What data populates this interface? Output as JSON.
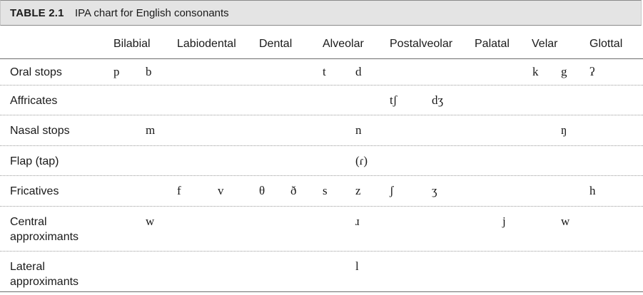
{
  "table": {
    "number": "TABLE 2.1",
    "title": "IPA chart for English consonants",
    "columns": [
      "Bilabial",
      "Labiodental",
      "Dental",
      "Alveolar",
      "Postalveolar",
      "Palatal",
      "Velar",
      "Glottal"
    ],
    "rows": [
      {
        "label": "Oral stops",
        "symbols": {
          "Bilabial": [
            "p",
            "b"
          ],
          "Alveolar": [
            "t",
            "d"
          ],
          "Velar": [
            "k",
            "g"
          ],
          "Glottal": [
            "ʔ"
          ]
        }
      },
      {
        "label": "Affricates",
        "symbols": {
          "Postalveolar": [
            "tʃ",
            "dʒ"
          ]
        }
      },
      {
        "label": "Nasal stops",
        "symbols": {
          "Bilabial": [
            "",
            "m"
          ],
          "Alveolar": [
            "",
            "n"
          ],
          "Velar": [
            "",
            "ŋ"
          ]
        }
      },
      {
        "label": "Flap (tap)",
        "symbols": {
          "Alveolar": [
            "",
            "(ɾ)"
          ]
        }
      },
      {
        "label": "Fricatives",
        "symbols": {
          "Labiodental": [
            "f",
            "v"
          ],
          "Dental": [
            "θ",
            "ð"
          ],
          "Alveolar": [
            "s",
            "z"
          ],
          "Postalveolar": [
            "ʃ",
            "ʒ"
          ],
          "Glottal": [
            "h"
          ]
        }
      },
      {
        "label": "Central\napproximants",
        "symbols": {
          "Bilabial": [
            "",
            "w"
          ],
          "Alveolar": [
            "",
            "ɹ"
          ],
          "Palatal": [
            "",
            "j"
          ],
          "Velar": [
            "",
            "w"
          ]
        }
      },
      {
        "label": "Lateral\napproximants",
        "symbols": {
          "Alveolar": [
            "",
            "l"
          ]
        }
      }
    ]
  }
}
